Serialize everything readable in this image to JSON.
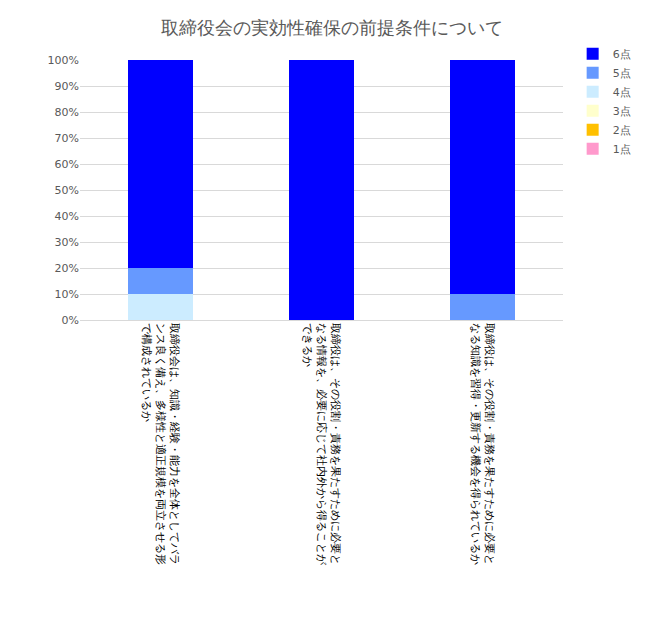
{
  "chart_data": {
    "type": "bar",
    "title": "取締役会の実効性確保の前提条件について",
    "stacked": true,
    "grid": true,
    "legend": "top right",
    "categories": [
      "取締役会は、知識・経験・能力を全体としてバラ\nンス良く備え、多様性と適正規模を両立させる形\nで構成されているか",
      "取締役は、その役割・責務を果たすために必要と\nなる情報を、必要に応じて社内外から得ることが\nできるか",
      "取締役は、その役割・責務を果たすために必要と\nなる知識を習得・更新する機会を得られているか"
    ],
    "series": [
      {
        "name": "1点",
        "color": "#ff99cc",
        "values": [
          0,
          0,
          0
        ]
      },
      {
        "name": "2点",
        "color": "#ffc000",
        "values": [
          0,
          0,
          0
        ]
      },
      {
        "name": "3点",
        "color": "#ffffcc",
        "values": [
          0,
          0,
          0
        ]
      },
      {
        "name": "4点",
        "color": "#ccecff",
        "values": [
          10,
          0,
          0
        ]
      },
      {
        "name": "5点",
        "color": "#6699ff",
        "values": [
          10,
          0,
          10
        ]
      },
      {
        "name": "6点",
        "color": "#0000ff",
        "values": [
          80,
          100,
          90
        ]
      }
    ],
    "ylim": [
      0,
      100
    ],
    "yticks": [
      {
        "value": 0,
        "label": "0%"
      },
      {
        "value": 10,
        "label": "10%"
      },
      {
        "value": 20,
        "label": "20%"
      },
      {
        "value": 30,
        "label": "30%"
      },
      {
        "value": 40,
        "label": "40%"
      },
      {
        "value": 50,
        "label": "50%"
      },
      {
        "value": 60,
        "label": "60%"
      },
      {
        "value": 70,
        "label": "70%"
      },
      {
        "value": 80,
        "label": "80%"
      },
      {
        "value": 90,
        "label": "90%"
      },
      {
        "value": 100,
        "label": "100%"
      }
    ]
  }
}
